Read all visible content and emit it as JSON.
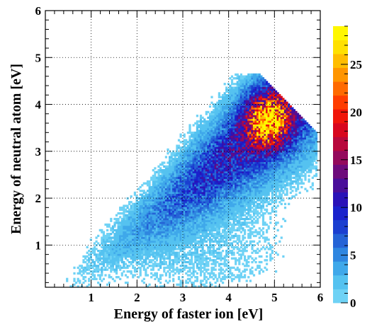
{
  "chart_data": {
    "type": "heatmap",
    "title": "",
    "xlabel": "Energy of faster ion [eV]",
    "ylabel": "Energy of neutral atom [eV]",
    "xlim": [
      0,
      6
    ],
    "ylim": [
      0.1,
      6
    ],
    "x_ticks": [
      "1",
      "2",
      "3",
      "4",
      "5",
      "6"
    ],
    "y_ticks": [
      "1",
      "2",
      "3",
      "4",
      "5",
      "6"
    ],
    "grid": true,
    "colorbar": {
      "range": [
        0,
        29
      ],
      "ticks": [
        "0",
        "5",
        "10",
        "15",
        "20",
        "25"
      ],
      "palette": [
        "#6fd2f5",
        "#55c2f0",
        "#3fa8ea",
        "#2f86e0",
        "#2563d6",
        "#1b3fd0",
        "#1a22cc",
        "#2a12b8",
        "#4a0e9a",
        "#6e0b7c",
        "#940a5c",
        "#b8083c",
        "#d8061e",
        "#f0150a",
        "#ff3d00",
        "#ff6a00",
        "#ff9500",
        "#ffbd00",
        "#ffe000",
        "#fff700"
      ]
    },
    "density": [
      {
        "x": 4.85,
        "y": 3.75,
        "peak_count": 29
      },
      {
        "x": 4.5,
        "y": 3.4,
        "peak_count": 20
      },
      {
        "x": 3.8,
        "y": 2.8,
        "peak_count": 10
      },
      {
        "x": 3.0,
        "y": 2.1,
        "peak_count": 8
      },
      {
        "x": 2.2,
        "y": 1.5,
        "peak_count": 5
      },
      {
        "x": 1.5,
        "y": 0.8,
        "peak_count": 2
      },
      {
        "x": 4.0,
        "y": 1.0,
        "peak_count": 2
      }
    ]
  }
}
